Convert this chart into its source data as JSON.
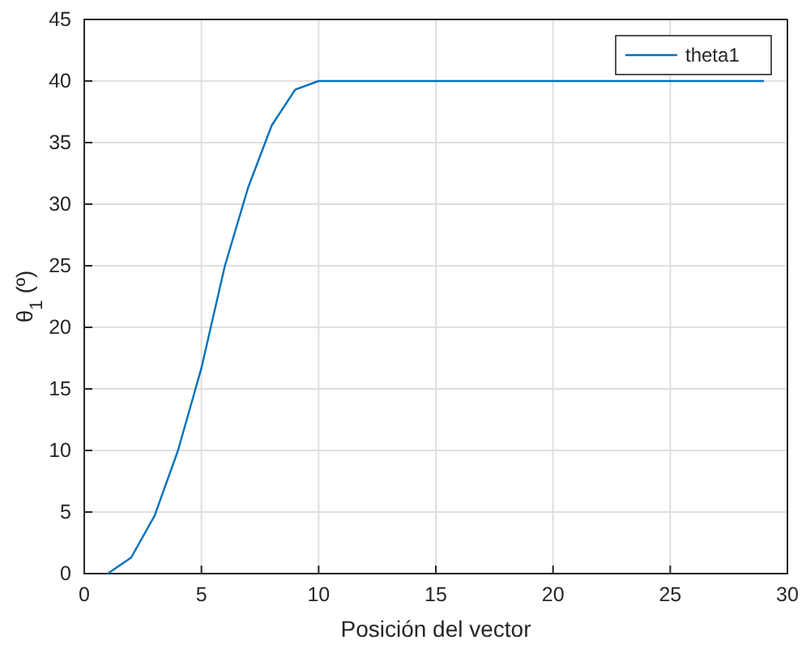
{
  "chart_data": {
    "type": "line",
    "xlabel": "Posición del vector",
    "ylabel": "θ$_{1}$ (º)",
    "x": [
      1,
      2,
      3,
      4,
      5,
      6,
      7,
      8,
      9,
      10,
      11,
      12,
      13,
      14,
      15,
      16,
      17,
      18,
      19,
      20,
      21,
      22,
      23,
      24,
      25,
      26,
      27,
      28,
      29
    ],
    "series": [
      {
        "name": "theta1",
        "color": "#0072bd",
        "values": [
          0,
          1.3,
          4.7,
          10,
          16.7,
          25,
          31.4,
          36.4,
          39.3,
          40,
          40,
          40,
          40,
          40,
          40,
          40,
          40,
          40,
          40,
          40,
          40,
          40,
          40,
          40,
          40,
          40,
          40,
          40,
          40
        ]
      }
    ],
    "xlim": [
      0,
      30
    ],
    "xticks": [
      0,
      5,
      10,
      15,
      20,
      25,
      30
    ],
    "ylim": [
      0,
      45
    ],
    "yticks": [
      0,
      5,
      10,
      15,
      20,
      25,
      30,
      35,
      40,
      45
    ],
    "grid": true,
    "legend": "top right",
    "marker": "none",
    "line_style": "solid"
  }
}
